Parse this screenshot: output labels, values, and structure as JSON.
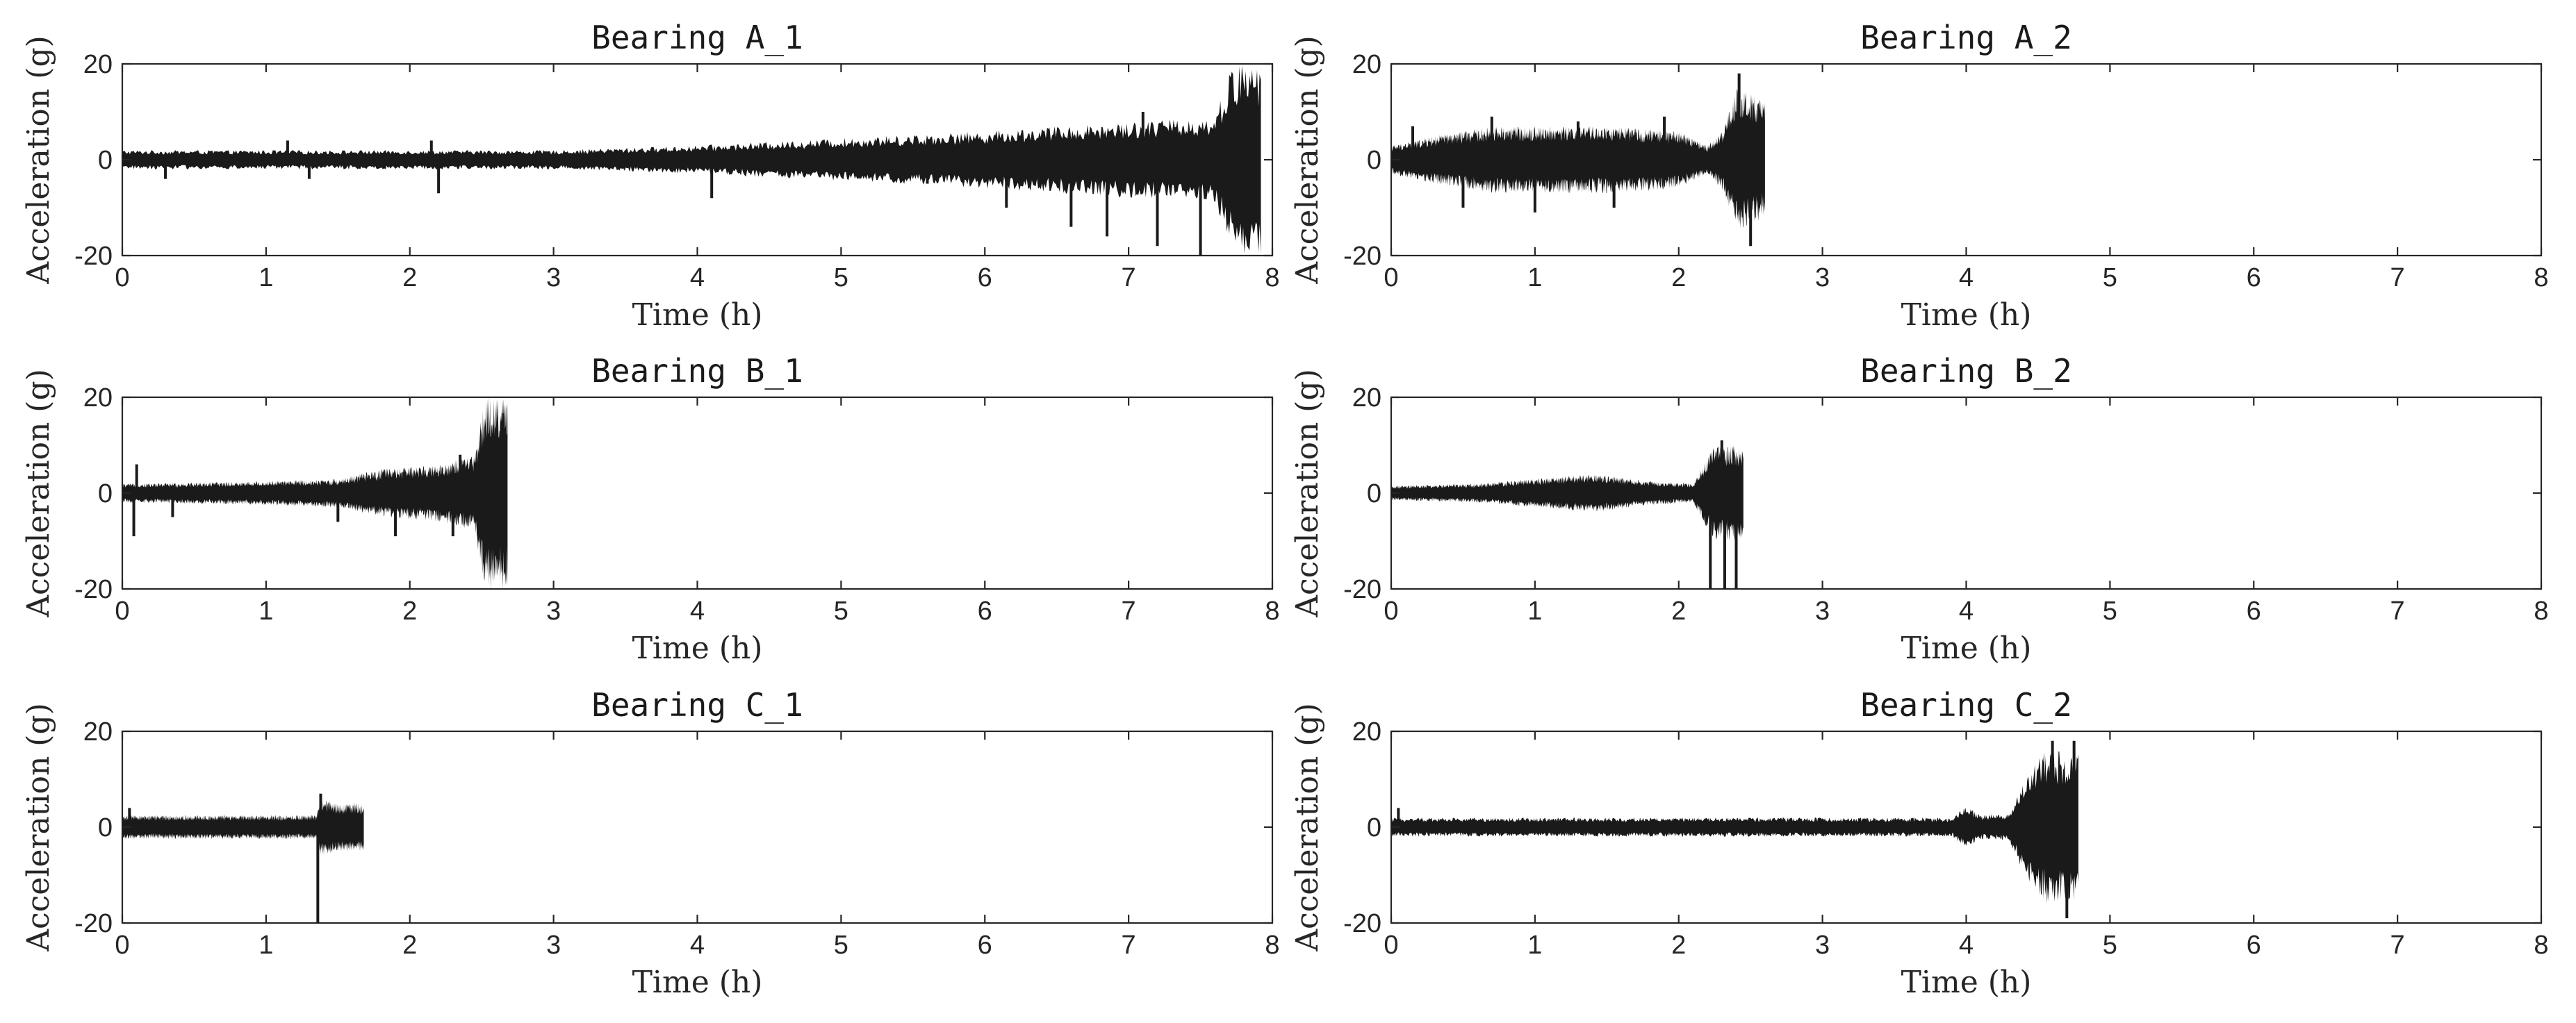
{
  "figure": {
    "signal_color": "#1a1a1a",
    "axis_color": "#262626",
    "background": "#ffffff"
  },
  "chart_data": [
    {
      "type": "line",
      "title": "Bearing A_1",
      "xlabel": "Time (h)",
      "ylabel": "Acceleration (g)",
      "xlim": [
        0,
        8
      ],
      "ylim": [
        -20,
        20
      ],
      "xticks": [
        0,
        1,
        2,
        3,
        4,
        5,
        6,
        7,
        8
      ],
      "yticks": [
        -20,
        0,
        20
      ],
      "series": [
        {
          "end_time": 7.92,
          "envelope": [
            [
              0,
              2
            ],
            [
              1,
              2
            ],
            [
              2,
              2
            ],
            [
              3,
              2
            ],
            [
              4,
              3
            ],
            [
              5,
              4.5
            ],
            [
              6,
              6
            ],
            [
              7,
              8
            ],
            [
              7.6,
              9
            ],
            [
              7.72,
              20
            ],
            [
              7.92,
              20
            ]
          ],
          "spikes": [
            [
              0.3,
              -4
            ],
            [
              1.15,
              4
            ],
            [
              1.3,
              -4
            ],
            [
              2.15,
              4
            ],
            [
              2.2,
              -7
            ],
            [
              4.1,
              -8
            ],
            [
              5.6,
              -5
            ],
            [
              6.15,
              -10
            ],
            [
              6.6,
              -14
            ],
            [
              6.85,
              -16
            ],
            [
              7.1,
              10
            ],
            [
              7.2,
              -18
            ],
            [
              7.5,
              -20
            ]
          ]
        }
      ]
    },
    {
      "type": "line",
      "title": "Bearing A_2",
      "xlabel": "Time (h)",
      "ylabel": "Acceleration (g)",
      "xlim": [
        0,
        8
      ],
      "ylim": [
        -20,
        20
      ],
      "xticks": [
        0,
        1,
        2,
        3,
        4,
        5,
        6,
        7,
        8
      ],
      "yticks": [
        -20,
        0,
        20
      ],
      "series": [
        {
          "end_time": 2.6,
          "envelope": [
            [
              0,
              3
            ],
            [
              0.3,
              5
            ],
            [
              0.7,
              7
            ],
            [
              1.0,
              7
            ],
            [
              1.5,
              7
            ],
            [
              2.0,
              6
            ],
            [
              2.2,
              3
            ],
            [
              2.3,
              6
            ],
            [
              2.4,
              15
            ],
            [
              2.5,
              14
            ],
            [
              2.6,
              12
            ]
          ],
          "spikes": [
            [
              0.15,
              7
            ],
            [
              0.5,
              -10
            ],
            [
              0.7,
              9
            ],
            [
              1.0,
              -11
            ],
            [
              1.3,
              8
            ],
            [
              1.55,
              -10
            ],
            [
              1.9,
              9
            ],
            [
              2.42,
              18
            ],
            [
              2.5,
              -18
            ]
          ]
        }
      ]
    },
    {
      "type": "line",
      "title": "Bearing B_1",
      "xlabel": "Time (h)",
      "ylabel": "Acceleration (g)",
      "xlim": [
        0,
        8
      ],
      "ylim": [
        -20,
        20
      ],
      "xticks": [
        0,
        1,
        2,
        3,
        4,
        5,
        6,
        7,
        8
      ],
      "yticks": [
        -20,
        0,
        20
      ],
      "series": [
        {
          "end_time": 2.68,
          "envelope": [
            [
              0,
              2
            ],
            [
              1,
              2.5
            ],
            [
              1.5,
              3
            ],
            [
              1.8,
              5
            ],
            [
              2.2,
              6
            ],
            [
              2.45,
              8
            ],
            [
              2.52,
              20
            ],
            [
              2.68,
              20
            ]
          ],
          "spikes": [
            [
              0.08,
              -9
            ],
            [
              0.1,
              6
            ],
            [
              0.35,
              -5
            ],
            [
              1.5,
              -6
            ],
            [
              1.9,
              -9
            ],
            [
              2.3,
              -9
            ],
            [
              2.35,
              8
            ]
          ]
        }
      ]
    },
    {
      "type": "line",
      "title": "Bearing B_2",
      "xlabel": "Time (h)",
      "ylabel": "Acceleration (g)",
      "xlim": [
        0,
        8
      ],
      "ylim": [
        -20,
        20
      ],
      "xticks": [
        0,
        1,
        2,
        3,
        4,
        5,
        6,
        7,
        8
      ],
      "yticks": [
        -20,
        0,
        20
      ],
      "series": [
        {
          "end_time": 2.45,
          "envelope": [
            [
              0,
              1.5
            ],
            [
              0.6,
              2
            ],
            [
              1.0,
              3
            ],
            [
              1.4,
              4
            ],
            [
              1.8,
              2.5
            ],
            [
              2.1,
              2
            ],
            [
              2.15,
              5
            ],
            [
              2.25,
              10
            ],
            [
              2.35,
              10
            ],
            [
              2.45,
              10
            ]
          ],
          "spikes": [
            [
              2.22,
              -20
            ],
            [
              2.3,
              11
            ],
            [
              2.32,
              -20
            ],
            [
              2.4,
              -20
            ]
          ]
        }
      ]
    },
    {
      "type": "line",
      "title": "Bearing C_1",
      "xlabel": "Time (h)",
      "ylabel": "Acceleration (g)",
      "xlim": [
        0,
        8
      ],
      "ylim": [
        -20,
        20
      ],
      "xticks": [
        0,
        1,
        2,
        3,
        4,
        5,
        6,
        7,
        8
      ],
      "yticks": [
        -20,
        0,
        20
      ],
      "series": [
        {
          "end_time": 1.68,
          "envelope": [
            [
              0,
              2.5
            ],
            [
              0.5,
              2.5
            ],
            [
              1.0,
              2.5
            ],
            [
              1.35,
              2.5
            ],
            [
              1.38,
              6
            ],
            [
              1.5,
              5
            ],
            [
              1.68,
              5
            ]
          ],
          "spikes": [
            [
              0.05,
              4
            ],
            [
              1.36,
              -20
            ],
            [
              1.38,
              7
            ]
          ]
        }
      ]
    },
    {
      "type": "line",
      "title": "Bearing C_2",
      "xlabel": "Time (h)",
      "ylabel": "Acceleration (g)",
      "xlim": [
        0,
        8
      ],
      "ylim": [
        -20,
        20
      ],
      "xticks": [
        0,
        1,
        2,
        3,
        4,
        5,
        6,
        7,
        8
      ],
      "yticks": [
        -20,
        0,
        20
      ],
      "series": [
        {
          "end_time": 4.78,
          "envelope": [
            [
              0,
              2
            ],
            [
              1,
              2
            ],
            [
              2,
              2
            ],
            [
              3,
              2
            ],
            [
              3.9,
              2
            ],
            [
              4.0,
              4.5
            ],
            [
              4.1,
              2.5
            ],
            [
              4.3,
              3
            ],
            [
              4.4,
              10
            ],
            [
              4.55,
              16
            ],
            [
              4.78,
              16
            ]
          ],
          "spikes": [
            [
              0.05,
              4
            ],
            [
              4.6,
              18
            ],
            [
              4.7,
              -19
            ],
            [
              4.75,
              18
            ]
          ]
        }
      ]
    }
  ]
}
